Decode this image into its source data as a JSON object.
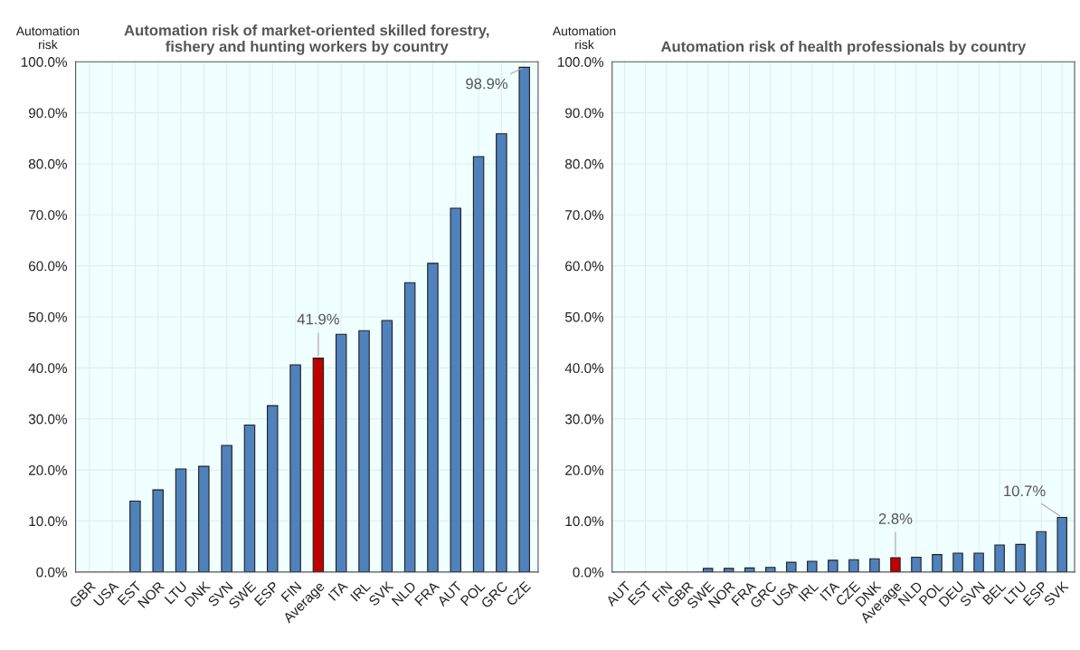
{
  "chart_data": [
    {
      "type": "bar",
      "title": "Automation risk of market-oriented skilled forestry,\nfishery and hunting workers by country",
      "ylabel": "Automation\nrisk",
      "categories": [
        "GBR",
        "USA",
        "EST",
        "NOR",
        "LTU",
        "DNK",
        "SVN",
        "SWE",
        "ESP",
        "FIN",
        "Average",
        "ITA",
        "IRL",
        "SVK",
        "NLD",
        "FRA",
        "AUT",
        "POL",
        "GRC",
        "CZE"
      ],
      "values": [
        0,
        0,
        13.9,
        16.1,
        20.2,
        20.7,
        24.8,
        28.8,
        32.6,
        40.6,
        41.9,
        46.6,
        47.3,
        49.3,
        56.7,
        60.5,
        71.3,
        81.4,
        85.9,
        98.9
      ],
      "colors": [
        "#4f81bd",
        "#4f81bd",
        "#4f81bd",
        "#4f81bd",
        "#4f81bd",
        "#4f81bd",
        "#4f81bd",
        "#4f81bd",
        "#4f81bd",
        "#4f81bd",
        "#c00000",
        "#4f81bd",
        "#4f81bd",
        "#4f81bd",
        "#4f81bd",
        "#4f81bd",
        "#4f81bd",
        "#4f81bd",
        "#4f81bd",
        "#4f81bd"
      ],
      "value_labels": [
        null,
        null,
        null,
        null,
        null,
        null,
        null,
        null,
        null,
        null,
        "41.9%",
        null,
        null,
        null,
        null,
        null,
        null,
        null,
        null,
        "98.9%"
      ],
      "ylim": [
        0,
        100
      ],
      "yticks": [
        {
          "value": 0,
          "label": "0.0%"
        },
        {
          "value": 10,
          "label": "10.0%"
        },
        {
          "value": 20,
          "label": "20.0%"
        },
        {
          "value": 30,
          "label": "30.0%"
        },
        {
          "value": 40,
          "label": "40.0%"
        },
        {
          "value": 50,
          "label": "50.0%"
        },
        {
          "value": 60,
          "label": "60.0%"
        },
        {
          "value": 70,
          "label": "70.0%"
        },
        {
          "value": 80,
          "label": "80.0%"
        },
        {
          "value": 90,
          "label": "90.0%"
        },
        {
          "value": 100,
          "label": "100.0%"
        }
      ],
      "grid": true
    },
    {
      "type": "bar",
      "title": "Automation risk of health professionals by country",
      "ylabel": "Automation\nrisk",
      "categories": [
        "AUT",
        "EST",
        "FIN",
        "GBR",
        "SWE",
        "NOR",
        "FRA",
        "GRC",
        "USA",
        "IRL",
        "ITA",
        "CZE",
        "DNK",
        "Average",
        "NLD",
        "POL",
        "DEU",
        "SVN",
        "BEL",
        "LTU",
        "ESP",
        "SVK"
      ],
      "values": [
        0,
        0,
        0,
        0,
        0.7,
        0.7,
        0.8,
        0.9,
        1.9,
        2.1,
        2.3,
        2.4,
        2.6,
        2.8,
        2.9,
        3.4,
        3.7,
        3.7,
        5.3,
        5.4,
        7.9,
        10.7
      ],
      "colors": [
        "#4f81bd",
        "#4f81bd",
        "#4f81bd",
        "#4f81bd",
        "#4f81bd",
        "#4f81bd",
        "#4f81bd",
        "#4f81bd",
        "#4f81bd",
        "#4f81bd",
        "#4f81bd",
        "#4f81bd",
        "#4f81bd",
        "#c00000",
        "#4f81bd",
        "#4f81bd",
        "#4f81bd",
        "#4f81bd",
        "#4f81bd",
        "#4f81bd",
        "#4f81bd",
        "#4f81bd"
      ],
      "value_labels": [
        null,
        null,
        null,
        null,
        null,
        null,
        null,
        null,
        null,
        null,
        null,
        null,
        null,
        "2.8%",
        null,
        null,
        null,
        null,
        null,
        null,
        null,
        "10.7%"
      ],
      "ylim": [
        0,
        100
      ],
      "yticks": [
        {
          "value": 0,
          "label": "0.0%"
        },
        {
          "value": 10,
          "label": "10.0%"
        },
        {
          "value": 20,
          "label": "20.0%"
        },
        {
          "value": 30,
          "label": "30.0%"
        },
        {
          "value": 40,
          "label": "40.0%"
        },
        {
          "value": 50,
          "label": "50.0%"
        },
        {
          "value": 60,
          "label": "60.0%"
        },
        {
          "value": 70,
          "label": "70.0%"
        },
        {
          "value": 80,
          "label": "80.0%"
        },
        {
          "value": 90,
          "label": "90.0%"
        },
        {
          "value": 100,
          "label": "100.0%"
        }
      ],
      "grid": true
    }
  ]
}
